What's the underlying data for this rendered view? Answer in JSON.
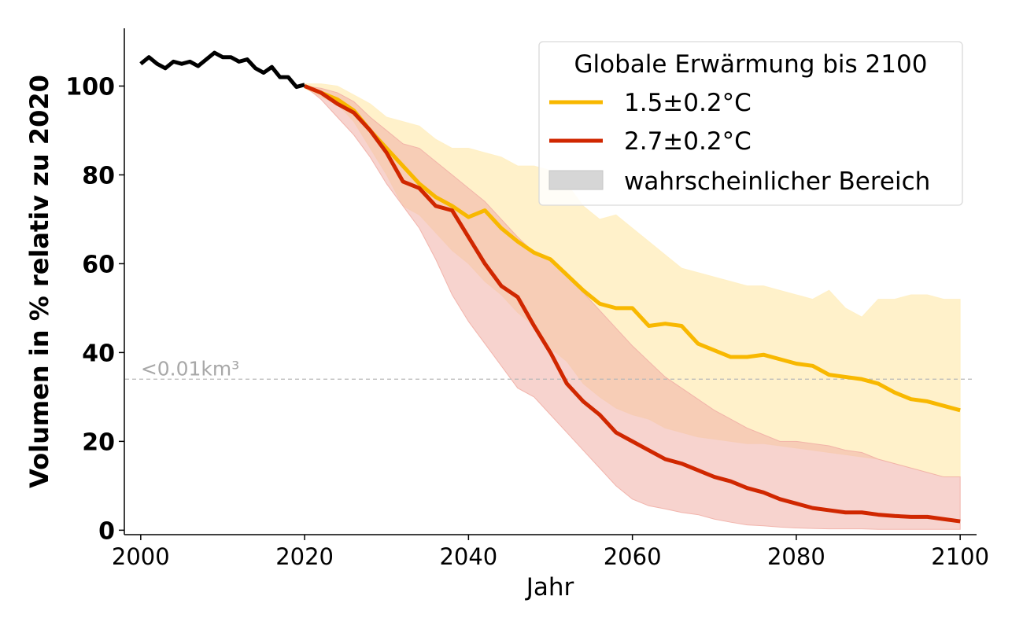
{
  "chart_data": {
    "type": "line",
    "xlabel": "Jahr",
    "ylabel": "Volumen in % relativ zu 2020",
    "xlim": [
      1998,
      2102
    ],
    "ylim": [
      -1,
      113
    ],
    "x_ticks": [
      2000,
      2020,
      2040,
      2060,
      2080,
      2100
    ],
    "y_ticks": [
      0,
      20,
      40,
      60,
      80,
      100
    ],
    "grid": false,
    "legend": {
      "title": "Globale Erwärmung bis 2100",
      "placement": "top-right",
      "range_label": "wahrscheinlicher Bereich"
    },
    "annotation": {
      "text": "<0.01km³",
      "y": 34
    },
    "historical": {
      "x": [
        2000,
        2001,
        2002,
        2003,
        2004,
        2005,
        2006,
        2007,
        2008,
        2009,
        2010,
        2011,
        2012,
        2013,
        2014,
        2015,
        2016,
        2017,
        2018,
        2019,
        2020
      ],
      "values": [
        105,
        106.5,
        105,
        104,
        105.5,
        105,
        105.5,
        104.5,
        106,
        107.5,
        106.5,
        106.5,
        105.5,
        106,
        104,
        103,
        104.3,
        102,
        102,
        99.8,
        100.3
      ],
      "color": "#000000"
    },
    "series": [
      {
        "name": "1.5±0.2°C",
        "color": "#f8b800",
        "band_color": "#fff0c4",
        "x": [
          2020,
          2022,
          2024,
          2026,
          2028,
          2030,
          2032,
          2034,
          2036,
          2038,
          2040,
          2042,
          2044,
          2046,
          2048,
          2050,
          2052,
          2054,
          2056,
          2058,
          2060,
          2062,
          2064,
          2066,
          2068,
          2070,
          2072,
          2074,
          2076,
          2078,
          2080,
          2082,
          2084,
          2086,
          2088,
          2090,
          2092,
          2094,
          2096,
          2098,
          2100
        ],
        "values": [
          100,
          98.5,
          97,
          94.5,
          90,
          86,
          82,
          78,
          75,
          73,
          70.5,
          72,
          68,
          65,
          62.5,
          61,
          57.5,
          54,
          51,
          50,
          50,
          46,
          46.5,
          46,
          42,
          40.5,
          39,
          39,
          39.5,
          38.5,
          37.5,
          37,
          35,
          34.5,
          34,
          33,
          31,
          29.5,
          29,
          28,
          27
        ],
        "upper": [
          100.5,
          100.5,
          100,
          98,
          96,
          93,
          92,
          91,
          88,
          86,
          86,
          85,
          84,
          82,
          82,
          81,
          78,
          73,
          70,
          71,
          68,
          65,
          62,
          59,
          58,
          57,
          56,
          55,
          55,
          54,
          53,
          52,
          54,
          50,
          48,
          52,
          52,
          53,
          53,
          52,
          52
        ],
        "lower": [
          99.5,
          97.5,
          96,
          92,
          86,
          80,
          73,
          71,
          67,
          63,
          60,
          56,
          53,
          49,
          46,
          41,
          38,
          33,
          30,
          27.5,
          26,
          25,
          23,
          22,
          21,
          20.5,
          20,
          19.5,
          19.5,
          19,
          18.5,
          18,
          17.5,
          17,
          16.5,
          16,
          15,
          14,
          13,
          12,
          12
        ]
      },
      {
        "name": "2.7±0.2°C",
        "color": "#d02700",
        "band_color": "#f1afa6",
        "x": [
          2020,
          2022,
          2024,
          2026,
          2028,
          2030,
          2032,
          2034,
          2036,
          2038,
          2040,
          2042,
          2044,
          2046,
          2048,
          2050,
          2052,
          2054,
          2056,
          2058,
          2060,
          2062,
          2064,
          2066,
          2068,
          2070,
          2072,
          2074,
          2076,
          2078,
          2080,
          2082,
          2084,
          2086,
          2088,
          2090,
          2092,
          2094,
          2096,
          2098,
          2100
        ],
        "values": [
          100,
          98.5,
          96,
          94,
          90,
          85,
          78.5,
          77,
          73,
          72,
          66,
          60,
          55,
          52.5,
          46,
          40,
          33,
          29,
          26,
          22,
          20,
          18,
          16,
          15,
          13.5,
          12,
          11,
          9.5,
          8.5,
          7,
          6,
          5,
          4.5,
          4,
          4,
          3.5,
          3.2,
          3,
          3,
          2.5,
          2
        ],
        "upper": [
          100,
          99.5,
          98.5,
          96.5,
          93,
          90,
          87,
          86,
          83,
          80,
          77,
          74,
          70,
          66,
          62.5,
          61,
          58,
          53.5,
          49.5,
          45.5,
          41.5,
          38,
          34.5,
          32,
          29.5,
          27,
          25,
          23,
          21.5,
          20,
          20,
          19.5,
          19,
          18,
          17.5,
          16,
          15,
          14,
          13,
          12,
          12
        ],
        "lower": [
          100,
          97,
          93,
          89,
          84,
          78,
          73,
          68,
          61,
          53,
          47,
          42,
          37,
          32,
          30,
          26,
          22,
          18,
          14,
          10,
          7,
          5.5,
          4.8,
          4,
          3.5,
          2.5,
          1.8,
          1.2,
          1,
          0.7,
          0.5,
          0.4,
          0.3,
          0.3,
          0.3,
          0.2,
          0.2,
          0.2,
          0.2,
          0.2,
          0.2
        ]
      }
    ]
  }
}
